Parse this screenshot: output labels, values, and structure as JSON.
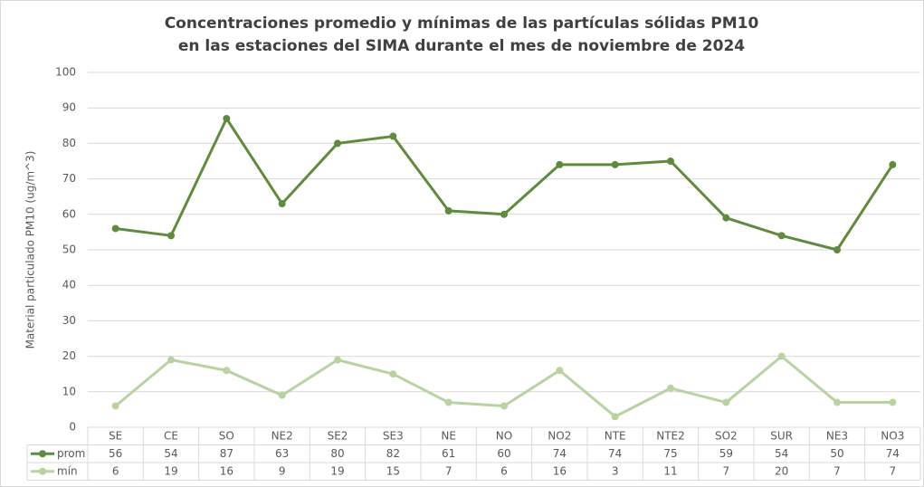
{
  "chart_data": {
    "type": "line",
    "title": [
      "Concentraciones promedio y mínimas de las partículas sólidas PM10",
      "en las estaciones del SIMA durante el mes de noviembre de 2024"
    ],
    "y_label": "Material particulado PM10 (ug/m^3)",
    "categories": [
      "SE",
      "CE",
      "SO",
      "NE2",
      "SE2",
      "SE3",
      "NE",
      "NO",
      "NO2",
      "NTE",
      "NTE2",
      "SO2",
      "SUR",
      "NE3",
      "NO3"
    ],
    "series": [
      {
        "name": "prom",
        "color": "#5e8c3b",
        "values": [
          56,
          54,
          87,
          63,
          80,
          82,
          61,
          60,
          74,
          74,
          75,
          59,
          54,
          50,
          74
        ]
      },
      {
        "name": "mín",
        "color": "#b7d39e",
        "values": [
          6,
          19,
          16,
          9,
          19,
          15,
          7,
          6,
          16,
          3,
          11,
          7,
          20,
          7,
          7
        ]
      }
    ],
    "ylim": [
      0,
      100
    ],
    "yticks": [
      0,
      10,
      20,
      30,
      40,
      50,
      60,
      70,
      80,
      90,
      100
    ],
    "grid": true
  }
}
